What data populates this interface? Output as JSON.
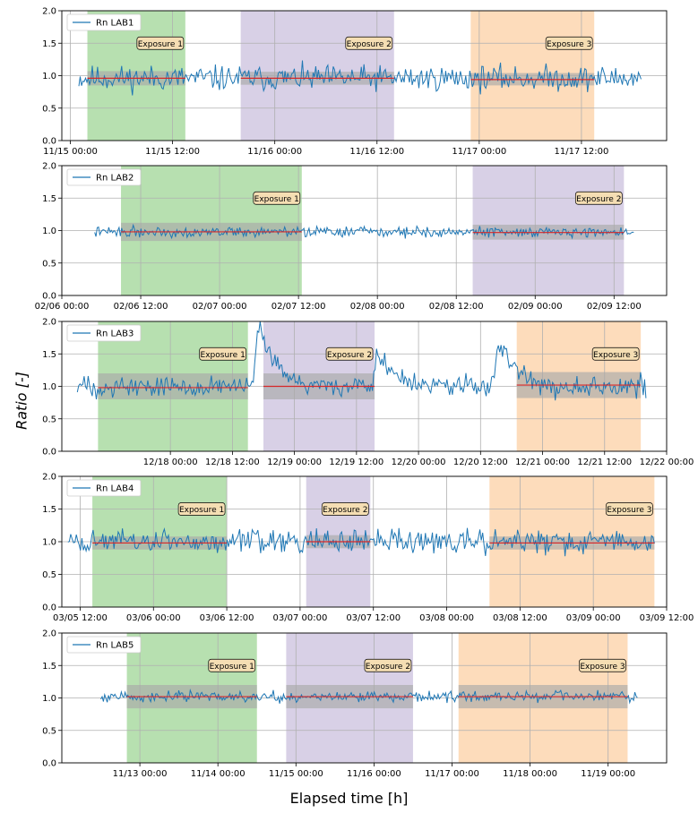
{
  "figure": {
    "ylabel": "Ratio [-]",
    "xlabel": "Elapsed time [h]"
  },
  "colors": {
    "series": "#1f77b4",
    "mean": "#d62728",
    "band": "#a9a9a9",
    "exposure1": "#b7e0b0",
    "exposure2": "#d8d0e6",
    "exposure3": "#fddcbb",
    "annotation_fill": "#f5deb3",
    "grid": "#b0b0b0"
  },
  "chart_data": [
    {
      "type": "line",
      "legend": "Rn LAB1",
      "legend_position": "top-left",
      "x_range": [
        "11/14 23:00",
        "11/17 22:00"
      ],
      "ylim": [
        0,
        2
      ],
      "grid": true,
      "yticks": [
        "0.0",
        "0.5",
        "1.0",
        "1.5",
        "2.0"
      ],
      "xticks": [
        {
          "at": "11/15 00:00",
          "label": "11/15 00:00"
        },
        {
          "at": "11/15 12:00",
          "label": "11/15 12:00"
        },
        {
          "at": "11/16 00:00",
          "label": "11/16 00:00"
        },
        {
          "at": "11/16 12:00",
          "label": "11/16 12:00"
        },
        {
          "at": "11/17 00:00",
          "label": "11/17 00:00"
        },
        {
          "at": "11/17 12:00",
          "label": "11/17 12:00"
        }
      ],
      "data_range": [
        "11/15 01:00",
        "11/17 19:00"
      ],
      "noise": 0.12,
      "seed": 11,
      "baseline": 0.96,
      "spikes": [],
      "exposures": [
        {
          "label": "Exposure 1",
          "color": "exposure1",
          "start": "11/15 02:00",
          "end": "11/15 13:30",
          "mean": 0.96,
          "band": [
            0.85,
            1.07
          ]
        },
        {
          "label": "Exposure 2",
          "color": "exposure2",
          "start": "11/15 20:00",
          "end": "11/16 14:00",
          "mean": 0.96,
          "band": [
            0.86,
            1.06
          ]
        },
        {
          "label": "Exposure 3",
          "color": "exposure3",
          "start": "11/16 23:00",
          "end": "11/17 13:30",
          "mean": 0.94,
          "band": [
            0.85,
            1.04
          ]
        }
      ]
    },
    {
      "type": "line",
      "legend": "Rn LAB2",
      "legend_position": "top-left",
      "x_range": [
        "02/06 00:00",
        "02/09 20:00"
      ],
      "ylim": [
        0,
        2
      ],
      "grid": true,
      "yticks": [
        "0.0",
        "0.5",
        "1.0",
        "1.5",
        "2.0"
      ],
      "xticks": [
        {
          "at": "02/06 00:00",
          "label": "02/06 00:00"
        },
        {
          "at": "02/06 12:00",
          "label": "02/06 12:00"
        },
        {
          "at": "02/07 00:00",
          "label": "02/07 00:00"
        },
        {
          "at": "02/07 12:00",
          "label": "02/07 12:00"
        },
        {
          "at": "02/08 00:00",
          "label": "02/08 00:00"
        },
        {
          "at": "02/08 12:00",
          "label": "02/08 12:00"
        },
        {
          "at": "02/09 00:00",
          "label": "02/09 00:00"
        },
        {
          "at": "02/09 12:00",
          "label": "02/09 12:00"
        }
      ],
      "data_range": [
        "02/06 05:00",
        "02/09 15:00"
      ],
      "noise": 0.05,
      "seed": 22,
      "baseline": 0.98,
      "spikes": [],
      "exposures": [
        {
          "label": "Exposure 1",
          "color": "exposure1",
          "start": "02/06 09:00",
          "end": "02/07 12:30",
          "mean": 0.98,
          "band": [
            0.84,
            1.12
          ]
        },
        {
          "label": "Exposure 2",
          "color": "exposure2",
          "start": "02/08 14:30",
          "end": "02/09 13:30",
          "mean": 0.97,
          "band": [
            0.86,
            1.09
          ]
        }
      ]
    },
    {
      "type": "line",
      "legend": "Rn LAB3",
      "legend_position": "top-left",
      "x_range": [
        "12/17 03:00",
        "12/22 00:00"
      ],
      "ylim": [
        0,
        2
      ],
      "grid": true,
      "yticks": [
        "0.0",
        "0.5",
        "1.0",
        "1.5",
        "2.0"
      ],
      "xticks": [
        {
          "at": "12/18 00:00",
          "label": "12/18 00:00"
        },
        {
          "at": "12/18 12:00",
          "label": "12/18 12:00"
        },
        {
          "at": "12/19 00:00",
          "label": "12/19 00:00"
        },
        {
          "at": "12/19 12:00",
          "label": "12/19 12:00"
        },
        {
          "at": "12/20 00:00",
          "label": "12/20 00:00"
        },
        {
          "at": "12/20 12:00",
          "label": "12/20 12:00"
        },
        {
          "at": "12/21 00:00",
          "label": "12/21 00:00"
        },
        {
          "at": "12/21 12:00",
          "label": "12/21 12:00"
        },
        {
          "at": "12/22 00:00",
          "label": "12/22 00:00"
        }
      ],
      "data_range": [
        "12/17 06:00",
        "12/21 20:00"
      ],
      "noise": 0.1,
      "seed": 33,
      "baseline": 1.0,
      "spikes": [
        {
          "at": "12/18 17:00",
          "value": 1.97,
          "decay": 3
        },
        {
          "at": "12/19 16:00",
          "value": 1.55,
          "decay": 3
        },
        {
          "at": "12/20 15:30",
          "value": 1.73,
          "decay": 3
        }
      ],
      "exposures": [
        {
          "label": "Exposure 1",
          "color": "exposure1",
          "start": "12/17 10:00",
          "end": "12/18 15:00",
          "mean": 0.98,
          "band": [
            0.8,
            1.2
          ]
        },
        {
          "label": "Exposure 2",
          "color": "exposure2",
          "start": "12/18 18:00",
          "end": "12/19 15:30",
          "mean": 1.0,
          "band": [
            0.8,
            1.2
          ]
        },
        {
          "label": "Exposure 3",
          "color": "exposure3",
          "start": "12/20 19:00",
          "end": "12/21 19:00",
          "mean": 1.02,
          "band": [
            0.82,
            1.22
          ]
        }
      ]
    },
    {
      "type": "line",
      "legend": "Rn LAB4",
      "legend_position": "top-left",
      "x_range": [
        "03/05 09:00",
        "03/09 12:00"
      ],
      "ylim": [
        0,
        2
      ],
      "grid": true,
      "yticks": [
        "0.0",
        "0.5",
        "1.0",
        "1.5",
        "2.0"
      ],
      "xticks": [
        {
          "at": "03/05 12:00",
          "label": "03/05 12:00"
        },
        {
          "at": "03/06 00:00",
          "label": "03/06 00:00"
        },
        {
          "at": "03/06 12:00",
          "label": "03/06 12:00"
        },
        {
          "at": "03/07 00:00",
          "label": "03/07 00:00"
        },
        {
          "at": "03/07 12:00",
          "label": "03/07 12:00"
        },
        {
          "at": "03/08 00:00",
          "label": "03/08 00:00"
        },
        {
          "at": "03/08 12:00",
          "label": "03/08 12:00"
        },
        {
          "at": "03/09 00:00",
          "label": "03/09 00:00"
        },
        {
          "at": "03/09 12:00",
          "label": "03/09 12:00"
        }
      ],
      "data_range": [
        "03/05 10:00",
        "03/09 10:00"
      ],
      "noise": 0.11,
      "seed": 44,
      "baseline": 1.0,
      "spikes": [],
      "exposures": [
        {
          "label": "Exposure 1",
          "color": "exposure1",
          "start": "03/05 14:00",
          "end": "03/06 12:00",
          "mean": 0.98,
          "band": [
            0.88,
            1.08
          ]
        },
        {
          "label": "Exposure 2",
          "color": "exposure2",
          "start": "03/07 01:00",
          "end": "03/07 11:30",
          "mean": 1.0,
          "band": [
            0.9,
            1.1
          ]
        },
        {
          "label": "Exposure 3",
          "color": "exposure3",
          "start": "03/08 07:00",
          "end": "03/09 10:00",
          "mean": 0.98,
          "band": [
            0.88,
            1.08
          ]
        }
      ]
    },
    {
      "type": "line",
      "legend": "Rn LAB5",
      "legend_position": "top-left",
      "x_range": [
        "11/12 00:00",
        "11/19 18:00"
      ],
      "ylim": [
        0,
        2
      ],
      "grid": true,
      "yticks": [
        "0.0",
        "0.5",
        "1.0",
        "1.5",
        "2.0"
      ],
      "xticks": [
        {
          "at": "11/13 00:00",
          "label": "11/13 00:00"
        },
        {
          "at": "11/14 00:00",
          "label": "11/14 00:00"
        },
        {
          "at": "11/15 00:00",
          "label": "11/15 00:00"
        },
        {
          "at": "11/16 00:00",
          "label": "11/16 00:00"
        },
        {
          "at": "11/17 00:00",
          "label": "11/17 00:00"
        },
        {
          "at": "11/18 00:00",
          "label": "11/18 00:00"
        },
        {
          "at": "11/19 00:00",
          "label": "11/19 00:00"
        }
      ],
      "data_range": [
        "11/12 12:00",
        "11/19 09:00"
      ],
      "noise": 0.05,
      "seed": 55,
      "baseline": 1.02,
      "spikes": [],
      "exposures": [
        {
          "label": "Exposure 1",
          "color": "exposure1",
          "start": "11/12 20:00",
          "end": "11/14 12:00",
          "mean": 1.02,
          "band": [
            0.84,
            1.2
          ]
        },
        {
          "label": "Exposure 2",
          "color": "exposure2",
          "start": "11/14 21:00",
          "end": "11/16 12:00",
          "mean": 1.02,
          "band": [
            0.84,
            1.2
          ]
        },
        {
          "label": "Exposure 3",
          "color": "exposure3",
          "start": "11/17 02:00",
          "end": "11/19 06:00",
          "mean": 1.02,
          "band": [
            0.84,
            1.2
          ]
        }
      ]
    }
  ]
}
